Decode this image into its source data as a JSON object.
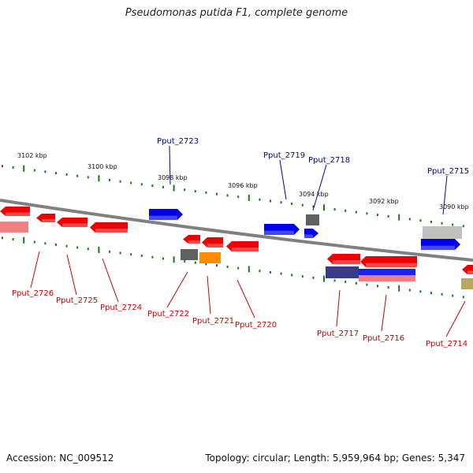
{
  "title": "Pseudomonas putida F1, complete genome",
  "footer": {
    "accession": "Accession: NC_009512",
    "summary": "Topology: circular; Length: 5,959,964 bp; Genes: 5,347"
  },
  "colors": {
    "forward_gene": "#0000ee",
    "reverse_gene": "#ee0000",
    "tick": "#1a7a1a",
    "backbone": "#808080",
    "forward_label": "#0000aa",
    "reverse_label": "#cc0000"
  },
  "scale_labels": [
    "3102 kbp",
    "3100 kbp",
    "3098 kbp",
    "3096 kbp",
    "3094 kbp",
    "3092 kbp",
    "3090 kbp"
  ],
  "genes": [
    {
      "name": "Pput_2726",
      "strand": "reverse",
      "color": "#ee0000"
    },
    {
      "name": "Pput_2725",
      "strand": "reverse",
      "color": "#ee0000"
    },
    {
      "name": "Pput_2724",
      "strand": "reverse",
      "color": "#ee0000"
    },
    {
      "name": "Pput_2723",
      "strand": "forward",
      "color": "#0000ee"
    },
    {
      "name": "Pput_2722",
      "strand": "reverse",
      "color": "#ee0000"
    },
    {
      "name": "Pput_2721",
      "strand": "reverse",
      "color": "#ee0000"
    },
    {
      "name": "Pput_2720",
      "strand": "reverse",
      "color": "#ee0000"
    },
    {
      "name": "Pput_2719",
      "strand": "forward",
      "color": "#0000ee"
    },
    {
      "name": "Pput_2718",
      "strand": "forward",
      "color": "#0000ee"
    },
    {
      "name": "Pput_2717",
      "strand": "reverse",
      "color": "#ee0000"
    },
    {
      "name": "Pput_2716",
      "strand": "reverse",
      "color": "#ee0000"
    },
    {
      "name": "Pput_2715",
      "strand": "forward",
      "color": "#0000ee"
    },
    {
      "name": "Pput_2714",
      "strand": "reverse",
      "color": "#ee0000"
    }
  ],
  "features": [
    {
      "kind": "rRNA-like",
      "color": "#606060"
    },
    {
      "kind": "orange",
      "color": "#ff8c00"
    },
    {
      "kind": "navy",
      "color": "#3a3a8a"
    },
    {
      "kind": "silver",
      "color": "#c0c0c0"
    },
    {
      "kind": "olive",
      "color": "#b8a860"
    },
    {
      "kind": "pink",
      "color": "#f08080"
    }
  ]
}
